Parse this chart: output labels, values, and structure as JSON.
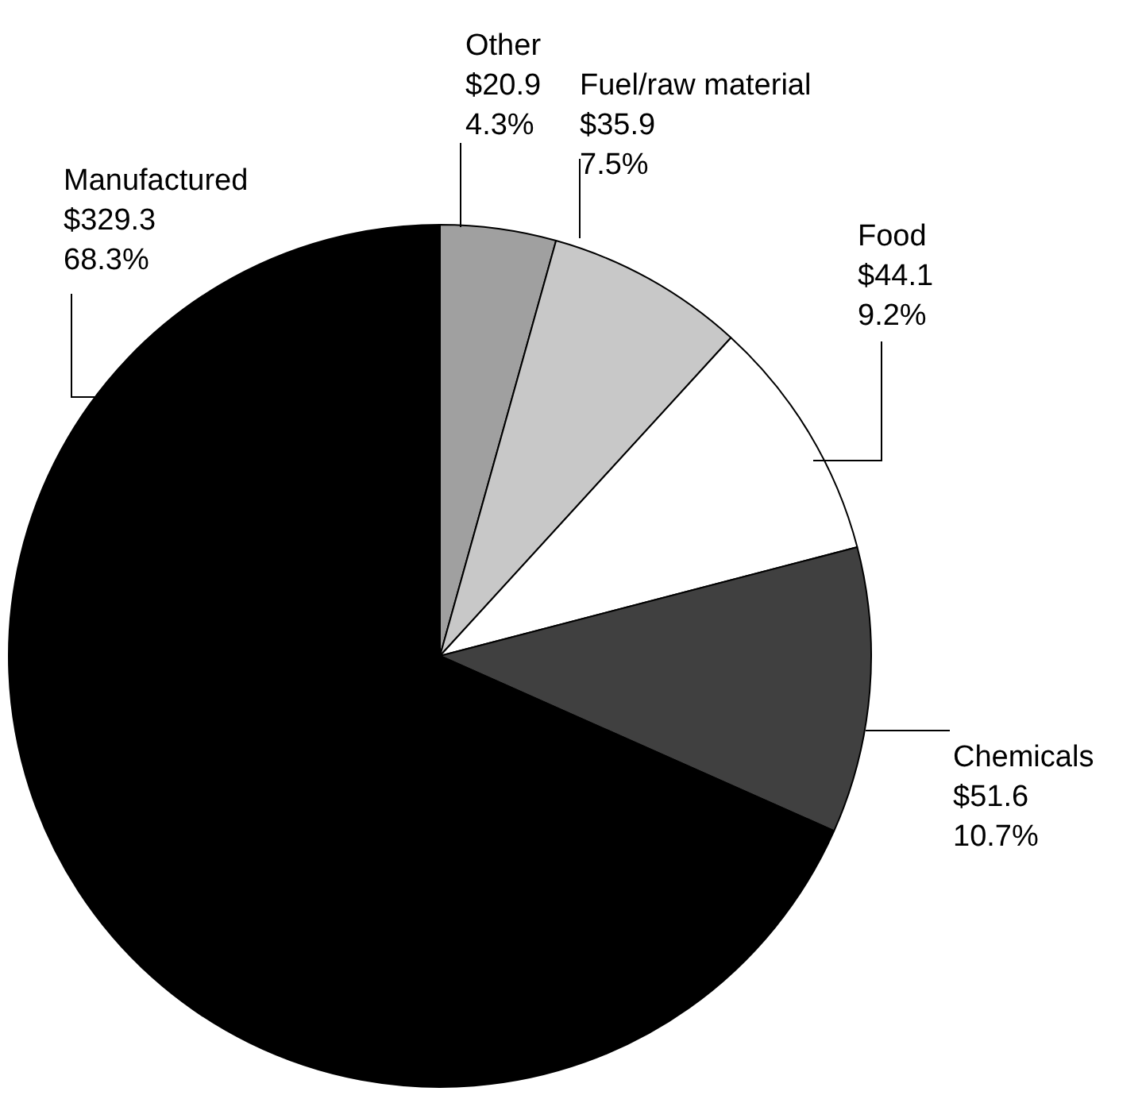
{
  "chart_data": {
    "type": "pie",
    "categories": [
      "Other",
      "Fuel/raw material",
      "Food",
      "Chemicals",
      "Manufactured"
    ],
    "values": [
      20.9,
      35.9,
      44.1,
      51.6,
      329.3
    ],
    "colors": [
      "#a0a0a0",
      "#c8c8c8",
      "#ffffff",
      "#404040",
      "#000000"
    ],
    "value_labels": [
      "$20.9\n4.3%",
      "$35.9\n7.5%",
      "$44.1\n9.2%",
      "$51.6\n10.7%",
      "$329.3\n68.3%"
    ],
    "legend": false
  }
}
